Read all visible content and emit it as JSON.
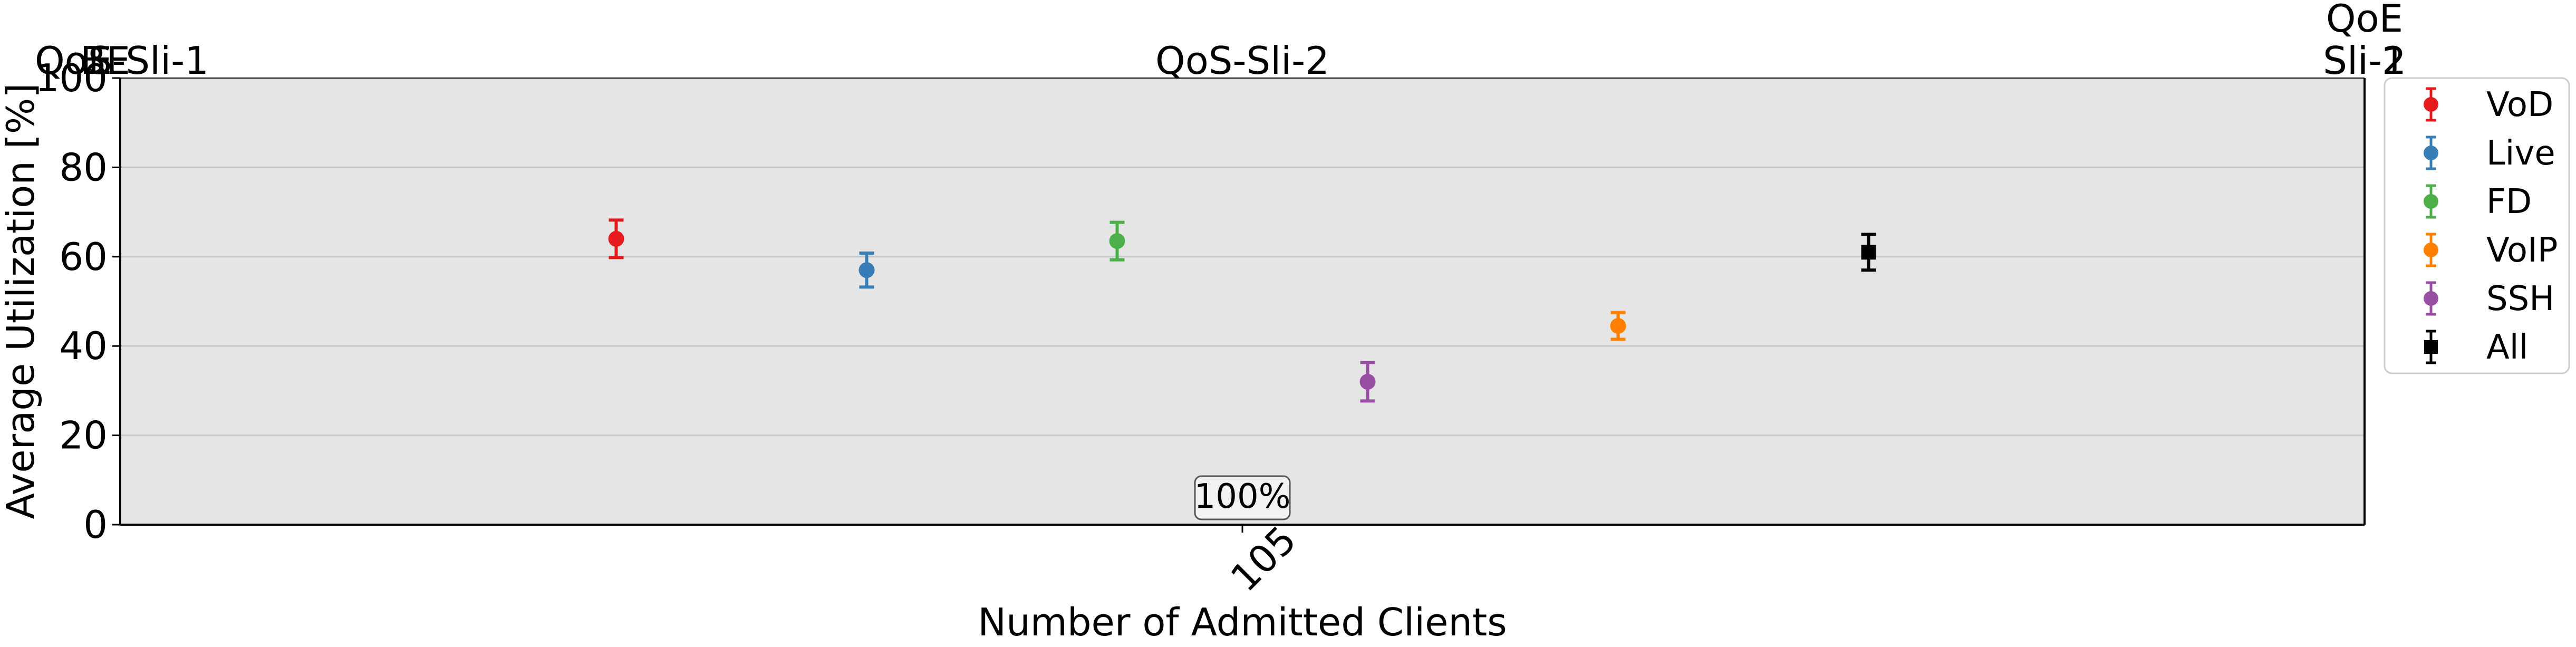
{
  "chart_data": {
    "type": "scatter",
    "subtype": "errorbar",
    "xlabel": "Number of Admitted Clients",
    "ylabel": "Average Utilization [%]",
    "ylim": [
      0,
      100
    ],
    "yticks": [
      0,
      20,
      40,
      60,
      80,
      100
    ],
    "x_tick_labels": [
      "105"
    ],
    "grid": "horizontal",
    "background": "#e5e5e5",
    "legend_position": "outside right-top",
    "top_labels": {
      "left": "QoS-Sli-1",
      "left_overlap_a": "QoE",
      "left_overlap_b": "BE",
      "center": "QoS-Sli-2",
      "right_top": "QoE",
      "right_bottom_a": "Sli-1",
      "right_bottom_b": "Sli-2"
    },
    "annotation": "100%",
    "series": [
      {
        "name": "VoD",
        "color": "#e41a1c",
        "marker": "circle",
        "value": 64,
        "err": 4.2
      },
      {
        "name": "Live",
        "color": "#377eb8",
        "marker": "circle",
        "value": 57,
        "err": 3.8
      },
      {
        "name": "FD",
        "color": "#4daf4a",
        "marker": "circle",
        "value": 63.5,
        "err": 4.2
      },
      {
        "name": "SSH",
        "color": "#984ea3",
        "marker": "circle",
        "value": 32,
        "err": 4.3
      },
      {
        "name": "VoIP",
        "color": "#ff7f00",
        "marker": "circle",
        "value": 44.5,
        "err": 3
      },
      {
        "name": "All",
        "color": "#000000",
        "marker": "square",
        "value": 61,
        "err": 4
      }
    ],
    "legend_order": [
      "VoD",
      "Live",
      "FD",
      "VoIP",
      "SSH",
      "All"
    ]
  }
}
